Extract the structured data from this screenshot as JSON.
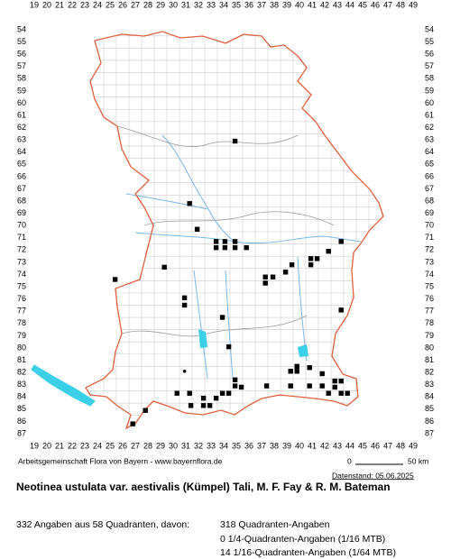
{
  "columns": [
    19,
    20,
    21,
    22,
    23,
    24,
    25,
    26,
    27,
    28,
    29,
    30,
    31,
    32,
    33,
    34,
    35,
    36,
    37,
    38,
    39,
    40,
    41,
    42,
    43,
    44,
    45,
    46,
    47,
    48,
    49
  ],
  "rows": [
    54,
    55,
    56,
    57,
    58,
    59,
    60,
    61,
    62,
    63,
    64,
    65,
    66,
    67,
    68,
    69,
    70,
    71,
    72,
    73,
    74,
    75,
    76,
    77,
    78,
    79,
    80,
    81,
    82,
    83,
    84,
    85,
    86,
    87
  ],
  "points": [
    [
      34.9,
      63.1
    ],
    [
      31.3,
      68.2
    ],
    [
      31.9,
      70.3
    ],
    [
      33.4,
      71.3
    ],
    [
      34.1,
      71.3
    ],
    [
      34.9,
      71.3
    ],
    [
      33.4,
      71.8
    ],
    [
      34.1,
      71.8
    ],
    [
      34.9,
      71.8
    ],
    [
      35.8,
      71.8
    ],
    [
      29.3,
      73.4
    ],
    [
      25.4,
      74.4
    ],
    [
      30.9,
      75.9
    ],
    [
      30.9,
      76.5
    ],
    [
      33.9,
      77.5
    ],
    [
      34.4,
      79.9
    ],
    [
      43.3,
      71.3
    ],
    [
      42.3,
      72.1
    ],
    [
      41.4,
      72.7
    ],
    [
      40.9,
      72.7
    ],
    [
      40.9,
      73.2
    ],
    [
      39.4,
      73.2
    ],
    [
      38.9,
      73.8
    ],
    [
      37.9,
      74.2
    ],
    [
      37.3,
      74.2
    ],
    [
      37.3,
      74.7
    ],
    [
      43.3,
      76.9
    ],
    [
      39.3,
      81.9
    ],
    [
      39.8,
      81.9
    ],
    [
      39.8,
      81.5
    ],
    [
      40.8,
      81.6
    ],
    [
      41.8,
      82.1
    ],
    [
      42.8,
      82.7
    ],
    [
      43.3,
      82.7
    ],
    [
      40.8,
      83.1
    ],
    [
      41.8,
      83.1
    ],
    [
      42.8,
      83.2
    ],
    [
      42.3,
      83.7
    ],
    [
      43.3,
      83.7
    ],
    [
      43.8,
      83.7
    ],
    [
      39.3,
      83.1
    ],
    [
      37.4,
      83.1
    ],
    [
      30.3,
      83.7
    ],
    [
      31.3,
      83.7
    ],
    [
      33.9,
      83.7
    ],
    [
      34.4,
      83.7
    ],
    [
      34.9,
      83.1
    ],
    [
      35.4,
      83.2
    ],
    [
      32.4,
      84.1
    ],
    [
      33.4,
      84.1
    ],
    [
      31.4,
      84.7
    ],
    [
      32.4,
      84.7
    ],
    [
      32.9,
      84.7
    ],
    [
      34.9,
      82.6
    ],
    [
      27.8,
      85.1
    ],
    [
      26.8,
      86.2
    ]
  ],
  "dots": [
    [
      30.9,
      81.9
    ]
  ],
  "footer": {
    "credit": "Arbeitsgemeinschaft Flora von Bayern - www.bayernflora.de",
    "scale_start": "0",
    "scale_end": "50 km",
    "date": "Datenstand: 05.06.2025"
  },
  "title": "Neotinea ustulata var. aestivalis (Kümpel) Tali, M. F. Fay & R. M. Bateman",
  "stats": {
    "summary": "332 Angaben aus 58 Quadranten, davon:",
    "lines": [
      "318 Quadranten-Angaben",
      "0 1/4-Quadranten-Angaben (1/16 MTB)",
      "14 1/16-Quadranten-Angaben (1/64 MTB)"
    ]
  }
}
